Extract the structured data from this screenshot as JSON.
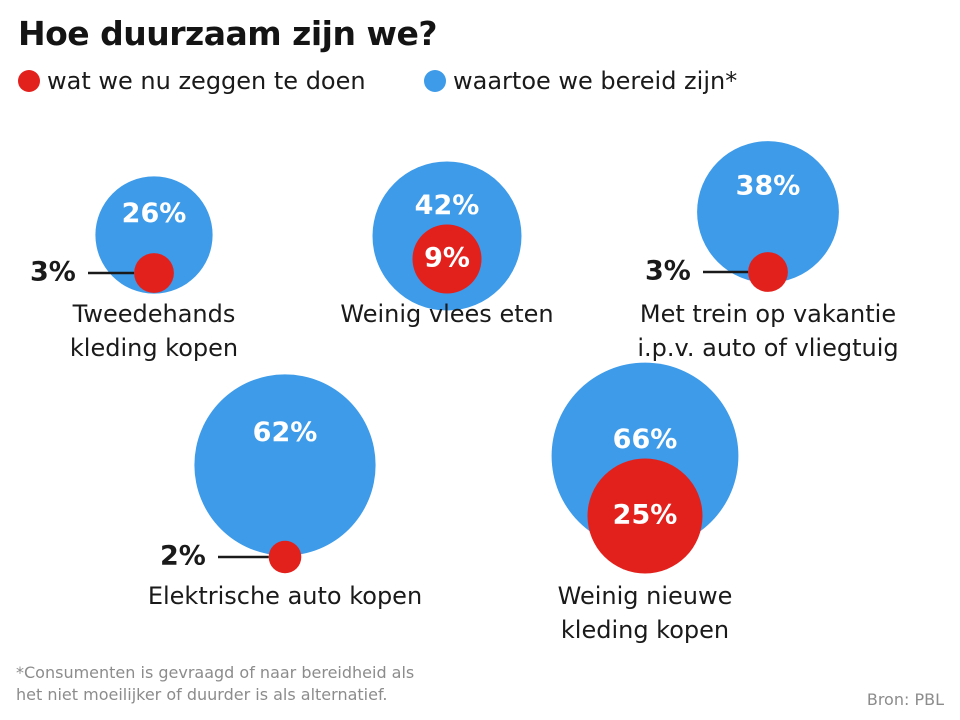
{
  "title": "Hoe duurzaam zijn we?",
  "legend": {
    "now_label": "wat we nu zeggen te doen",
    "ready_label": "waartoe we bereid zijn*"
  },
  "colors": {
    "now": "#e3211c",
    "ready": "#3d9be9",
    "text": "#1a1a1a",
    "muted": "#8c8c8c"
  },
  "chart_data": {
    "type": "bubble",
    "title": "Hoe duurzaam zijn we?",
    "unit": "%",
    "series": [
      {
        "name": "wat we nu zeggen te doen",
        "color": "#e3211c"
      },
      {
        "name": "waartoe we bereid zijn*",
        "color": "#3d9be9"
      }
    ],
    "items": [
      {
        "label": [
          "Tweedehands",
          "kleding kopen"
        ],
        "now": 3,
        "now_label": "3%",
        "ready": 26,
        "ready_label": "26%"
      },
      {
        "label": [
          "Weinig vlees eten"
        ],
        "now": 9,
        "now_label": "9%",
        "ready": 42,
        "ready_label": "42%"
      },
      {
        "label": [
          "Met trein op vakantie",
          "i.p.v. auto of vliegtuig"
        ],
        "now": 3,
        "now_label": "3%",
        "ready": 38,
        "ready_label": "38%"
      },
      {
        "label": [
          "Elektrische auto kopen"
        ],
        "now": 2,
        "now_label": "2%",
        "ready": 62,
        "ready_label": "62%"
      },
      {
        "label": [
          "Weinig nieuwe",
          "kleding kopen"
        ],
        "now": 25,
        "now_label": "25%",
        "ready": 66,
        "ready_label": "66%"
      }
    ]
  },
  "footnote": [
    "*Consumenten is gevraagd of naar bereidheid als",
    "het niet moeilijker of duurder is als alternatief."
  ],
  "source": "Bron: PBL"
}
